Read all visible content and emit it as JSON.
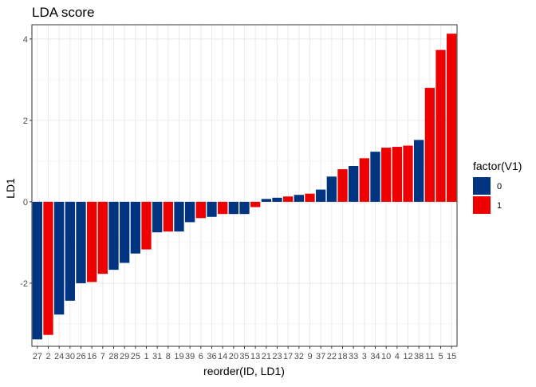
{
  "chart_data": {
    "type": "bar",
    "title": "LDA score",
    "xlabel": "reorder(ID, LD1)",
    "ylabel": "LD1",
    "ylim": [
      -3.55,
      4.35
    ],
    "y_ticks": [
      -2,
      0,
      2,
      4
    ],
    "y_tick_labels": [
      "-2",
      "0",
      "2",
      "4"
    ],
    "grid": true,
    "legend": {
      "title": "factor(V1)",
      "position": "right"
    },
    "groups": [
      {
        "name": "0",
        "color": "#003380"
      },
      {
        "name": "1",
        "color": "#EE0000"
      }
    ],
    "categories": [
      "27",
      "2",
      "24",
      "30",
      "26",
      "16",
      "7",
      "28",
      "29",
      "25",
      "1",
      "31",
      "8",
      "19",
      "39",
      "6",
      "36",
      "14",
      "20",
      "35",
      "13",
      "21",
      "23",
      "17",
      "32",
      "9",
      "37",
      "22",
      "18",
      "33",
      "3",
      "34",
      "10",
      "4",
      "12",
      "38",
      "11",
      "5",
      "15"
    ],
    "values": [
      -3.38,
      -3.27,
      -2.77,
      -2.43,
      -2.0,
      -1.97,
      -1.77,
      -1.67,
      -1.5,
      -1.27,
      -1.17,
      -0.75,
      -0.73,
      -0.73,
      -0.5,
      -0.4,
      -0.37,
      -0.3,
      -0.3,
      -0.3,
      -0.13,
      0.07,
      0.1,
      0.13,
      0.17,
      0.2,
      0.3,
      0.62,
      0.8,
      0.88,
      1.07,
      1.23,
      1.33,
      1.35,
      1.38,
      1.52,
      2.8,
      3.73,
      4.13
    ],
    "group": [
      "0",
      "1",
      "0",
      "0",
      "0",
      "1",
      "1",
      "0",
      "0",
      "0",
      "1",
      "0",
      "1",
      "0",
      "0",
      "1",
      "0",
      "1",
      "0",
      "0",
      "1",
      "0",
      "0",
      "1",
      "0",
      "1",
      "0",
      "0",
      "1",
      "0",
      "1",
      "0",
      "1",
      "1",
      "1",
      "0",
      "1",
      "1",
      "1"
    ]
  }
}
